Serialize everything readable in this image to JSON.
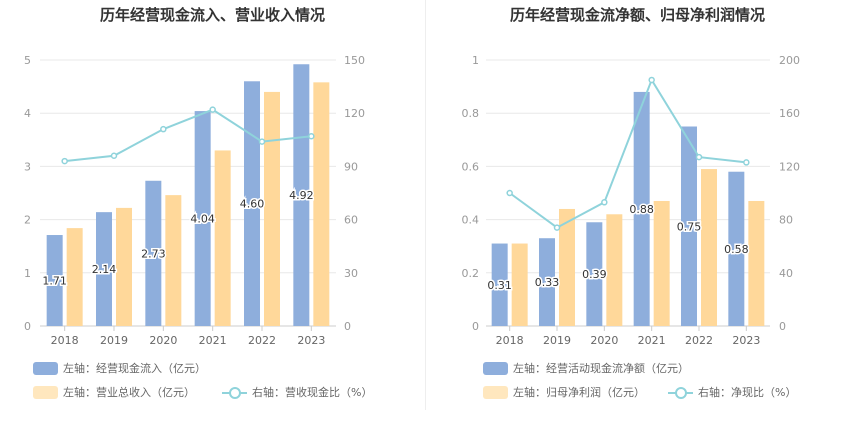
{
  "colors": {
    "bar1": "#8eaedc",
    "bar2": "#ffd89a",
    "line": "#8fd3db",
    "grid": "#e8e8e8",
    "axis": "#999999"
  },
  "chart_data": [
    {
      "type": "bar",
      "title": "历年经营现金流入、营业收入情况",
      "categories": [
        "2018",
        "2019",
        "2020",
        "2021",
        "2022",
        "2023"
      ],
      "left_axis": {
        "ylim": [
          0,
          5
        ],
        "ticks": [
          "0",
          "1",
          "2",
          "3",
          "4",
          "5"
        ]
      },
      "right_axis": {
        "ylim": [
          0,
          150
        ],
        "ticks": [
          "0",
          "30",
          "60",
          "90",
          "120",
          "150"
        ]
      },
      "series": [
        {
          "name": "左轴：经营现金流入（亿元）",
          "type": "bar",
          "axis": "left",
          "values": [
            1.71,
            2.14,
            2.73,
            4.04,
            4.6,
            4.92
          ],
          "labels": [
            "1.71",
            "2.14",
            "2.73",
            "4.04",
            "4.60",
            "4.92"
          ]
        },
        {
          "name": "左轴：营业总收入（亿元）",
          "type": "bar",
          "axis": "left",
          "values": [
            1.84,
            2.22,
            2.46,
            3.3,
            4.4,
            4.58
          ]
        },
        {
          "name": "右轴：营收现金比（%）",
          "type": "line",
          "axis": "right",
          "values": [
            93,
            96,
            111,
            122,
            104,
            107
          ]
        }
      ]
    },
    {
      "type": "bar",
      "title": "历年经营现金流净额、归母净利润情况",
      "categories": [
        "2018",
        "2019",
        "2020",
        "2021",
        "2022",
        "2023"
      ],
      "left_axis": {
        "ylim": [
          0,
          1
        ],
        "ticks": [
          "0",
          "0.2",
          "0.4",
          "0.6",
          "0.8",
          "1"
        ]
      },
      "right_axis": {
        "ylim": [
          0,
          200
        ],
        "ticks": [
          "0",
          "40",
          "80",
          "120",
          "160",
          "200"
        ]
      },
      "series": [
        {
          "name": "左轴：经营活动现金流净额（亿元）",
          "type": "bar",
          "axis": "left",
          "values": [
            0.31,
            0.33,
            0.39,
            0.88,
            0.75,
            0.58
          ],
          "labels": [
            "0.31",
            "0.33",
            "0.39",
            "0.88",
            "0.75",
            "0.58"
          ]
        },
        {
          "name": "左轴：归母净利润（亿元）",
          "type": "bar",
          "axis": "left",
          "values": [
            0.31,
            0.44,
            0.42,
            0.47,
            0.59,
            0.47
          ]
        },
        {
          "name": "右轴：净现比（%）",
          "type": "line",
          "axis": "right",
          "values": [
            100,
            74,
            93,
            185,
            127,
            123
          ]
        }
      ]
    }
  ]
}
